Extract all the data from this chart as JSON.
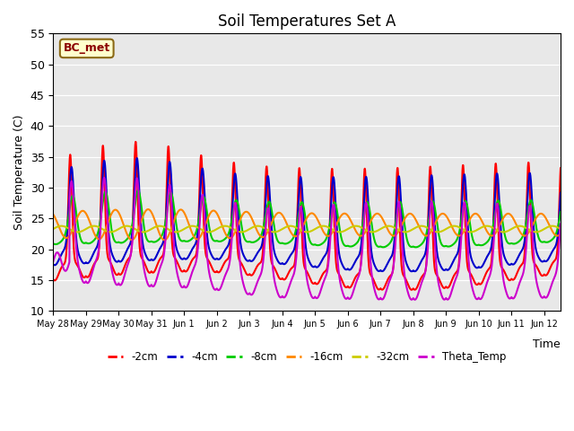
{
  "title": "Soil Temperatures Set A",
  "xlabel": "Time",
  "ylabel": "Soil Temperature (C)",
  "ylim": [
    10,
    55
  ],
  "xlim": [
    0,
    15.5
  ],
  "annotation": "BC_met",
  "facecolor": "#e8e8e8",
  "series_colors": {
    "-2cm": "#ff0000",
    "-4cm": "#0000cc",
    "-8cm": "#00cc00",
    "-16cm": "#ff8800",
    "-32cm": "#cccc00",
    "Theta_Temp": "#cc00cc"
  },
  "xtick_labels": [
    "May 28",
    "May 29",
    "May 30",
    "May 31",
    "Jun 1",
    "Jun 2",
    "Jun 3",
    "Jun 4",
    "Jun 5",
    "Jun 6",
    "Jun 7",
    "Jun 8",
    "Jun 9",
    "Jun 10",
    "Jun 11",
    "Jun 12"
  ],
  "xtick_positions": [
    0,
    1,
    2,
    3,
    4,
    5,
    6,
    7,
    8,
    9,
    10,
    11,
    12,
    13,
    14,
    15
  ],
  "ytick_positions": [
    10,
    15,
    20,
    25,
    30,
    35,
    40,
    45,
    50,
    55
  ],
  "lw": 1.5
}
